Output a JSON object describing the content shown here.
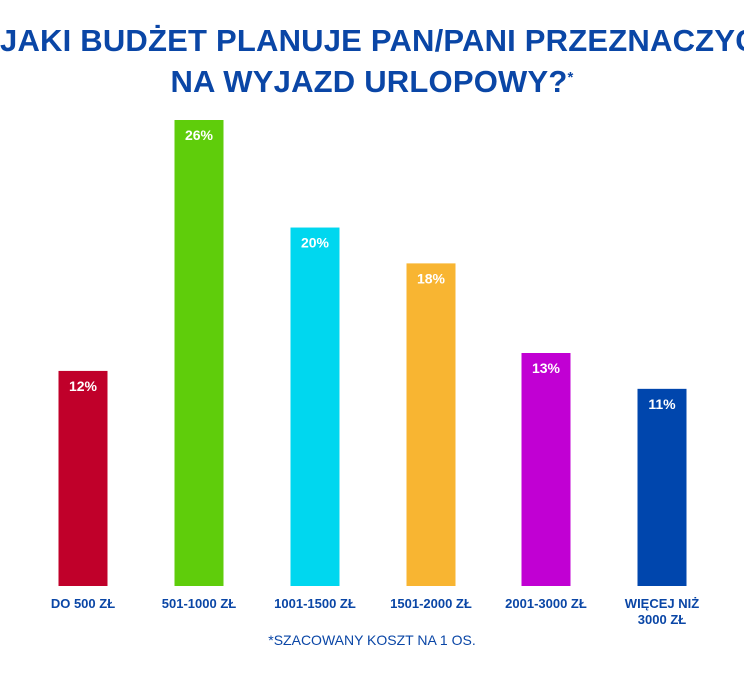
{
  "title": {
    "line1": "JAKI BUDŻET PLANUJE PAN/PANI PRZEZNACZYĆ",
    "line2": "NA WYJAZD URLOPOWY?",
    "asterisk": "*"
  },
  "footnote": "*SZACOWANY KOSZT NA 1 OS.",
  "colors": {
    "title": "#0a46a6",
    "label": "#0a46a6",
    "value_text": "#ffffff",
    "background": "#ffffff"
  },
  "chart_data": {
    "type": "bar",
    "title": "JAKI BUDŻET PLANUJE PAN/PANI PRZEZNACZYĆ NA WYJAZD URLOPOWY?*",
    "xlabel": "",
    "ylabel": "",
    "grid": false,
    "legend": "none",
    "ylim": [
      0,
      26
    ],
    "unit": "%",
    "categories": [
      [
        "DO 500 ZŁ"
      ],
      [
        "501-1000 ZŁ"
      ],
      [
        "1001-1500 ZŁ"
      ],
      [
        "1501-2000 ZŁ"
      ],
      [
        "2001-3000 ZŁ"
      ],
      [
        "WIĘCEJ NIŻ",
        "3000 ZŁ"
      ]
    ],
    "values": [
      12,
      26,
      20,
      18,
      13,
      11
    ],
    "data_labels": [
      "12%",
      "26%",
      "20%",
      "18%",
      "13%",
      "11%"
    ],
    "bar_colors": [
      "#c0002a",
      "#5fcd0b",
      "#00d7ef",
      "#f8b532",
      "#c100d3",
      "#0046ad"
    ]
  }
}
